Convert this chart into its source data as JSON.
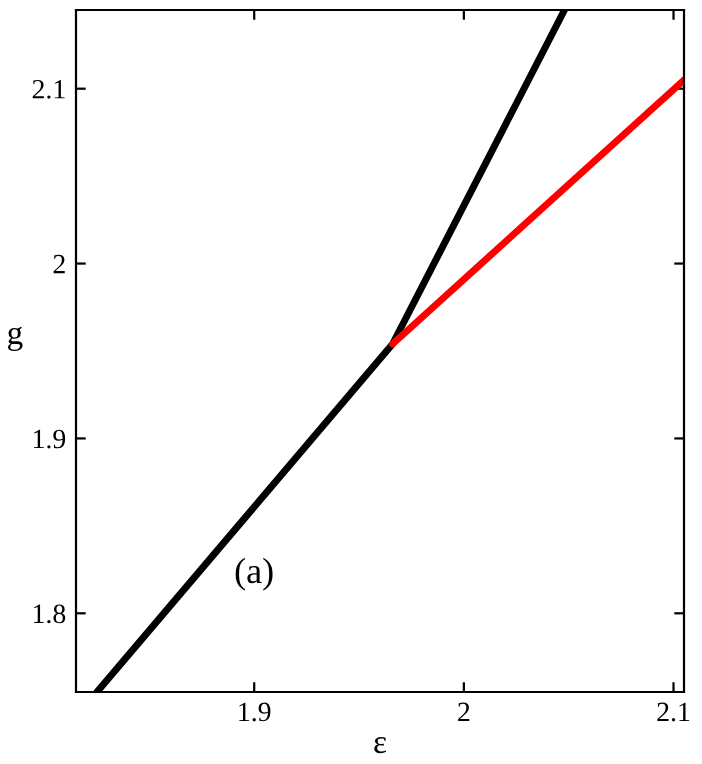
{
  "chart_data": {
    "type": "line",
    "xlabel": "ε",
    "ylabel": "g",
    "annotations": [
      "(a)"
    ],
    "series": [
      {
        "color": "#000000",
        "x": [
          1.825,
          1.966,
          2.048
        ],
        "values": [
          1.755,
          1.954,
          2.145
        ]
      },
      {
        "color": "#ff0000",
        "x": [
          1.966,
          2.105
        ],
        "values": [
          1.954,
          2.105
        ]
      }
    ],
    "xlim": [
      1.815,
      2.105
    ],
    "ylim": [
      1.755,
      2.145
    ],
    "xticks": [
      {
        "value": 1.9,
        "label": "1.9"
      },
      {
        "value": 2.0,
        "label": "2"
      },
      {
        "value": 2.1,
        "label": "2.1"
      }
    ],
    "yticks": [
      {
        "value": 1.8,
        "label": "1.8"
      },
      {
        "value": 1.9,
        "label": "1.9"
      },
      {
        "value": 2.0,
        "label": "2"
      },
      {
        "value": 2.1,
        "label": "2.1"
      }
    ],
    "grid": false,
    "legend": false,
    "line_style": "solid",
    "marker": "none"
  }
}
